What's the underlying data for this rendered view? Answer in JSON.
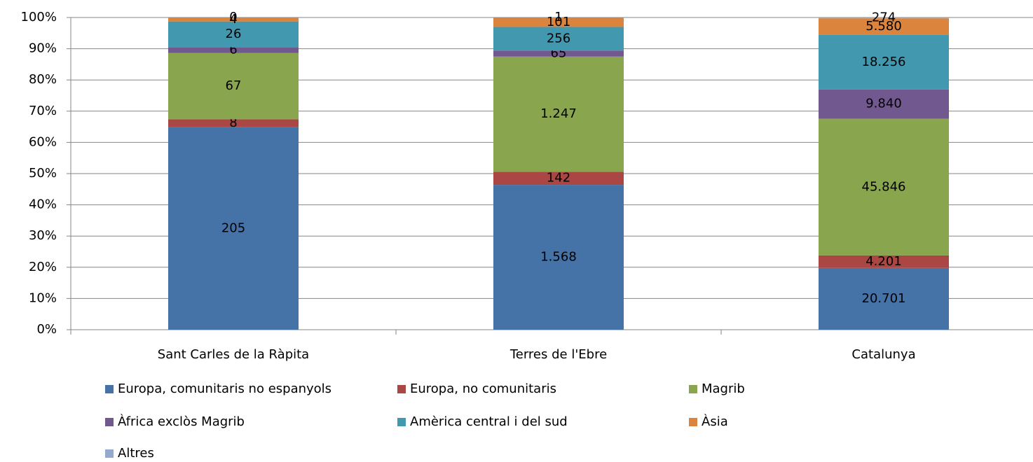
{
  "chart_data": {
    "type": "bar",
    "stacking": "percent",
    "categories": [
      "Sant Carles de la Ràpita",
      "Terres de l'Ebre",
      "Catalunya"
    ],
    "series": [
      {
        "name": "Europa, comunitaris no espanyols",
        "color": "#4572a7",
        "values": [
          205,
          1568,
          20701
        ],
        "value_labels": [
          "205",
          "1.568",
          "20.701"
        ]
      },
      {
        "name": "Europa, no comunitaris",
        "color": "#aa4643",
        "values": [
          8,
          142,
          4201
        ],
        "value_labels": [
          "8",
          "142",
          "4.201"
        ]
      },
      {
        "name": "Magrib",
        "color": "#89a54e",
        "values": [
          67,
          1247,
          45846
        ],
        "value_labels": [
          "67",
          "1.247",
          "45.846"
        ]
      },
      {
        "name": "Àfrica exclòs Magrib",
        "color": "#71588f",
        "values": [
          6,
          65,
          9840
        ],
        "value_labels": [
          "6",
          "65",
          "9.840"
        ]
      },
      {
        "name": "Amèrica central i del sud",
        "color": "#4198af",
        "values": [
          26,
          256,
          18256
        ],
        "value_labels": [
          "26",
          "256",
          "18.256"
        ]
      },
      {
        "name": "Àsia",
        "color": "#db843d",
        "values": [
          4,
          101,
          5580
        ],
        "value_labels": [
          "4",
          "101",
          "5.580"
        ]
      },
      {
        "name": "Altres",
        "color": "#93a9cf",
        "values": [
          0,
          1,
          274
        ],
        "value_labels": [
          "0",
          "1",
          "274"
        ]
      }
    ],
    "ylim": [
      0,
      100
    ],
    "yticks": [
      {
        "value": 0,
        "label": "0%"
      },
      {
        "value": 10,
        "label": "10%"
      },
      {
        "value": 20,
        "label": "20%"
      },
      {
        "value": 30,
        "label": "30%"
      },
      {
        "value": 40,
        "label": "40%"
      },
      {
        "value": 50,
        "label": "50%"
      },
      {
        "value": 60,
        "label": "60%"
      },
      {
        "value": 70,
        "label": "70%"
      },
      {
        "value": 80,
        "label": "80%"
      },
      {
        "value": 90,
        "label": "90%"
      },
      {
        "value": 100,
        "label": "100%"
      }
    ],
    "grid": true,
    "legend": "bottom"
  }
}
